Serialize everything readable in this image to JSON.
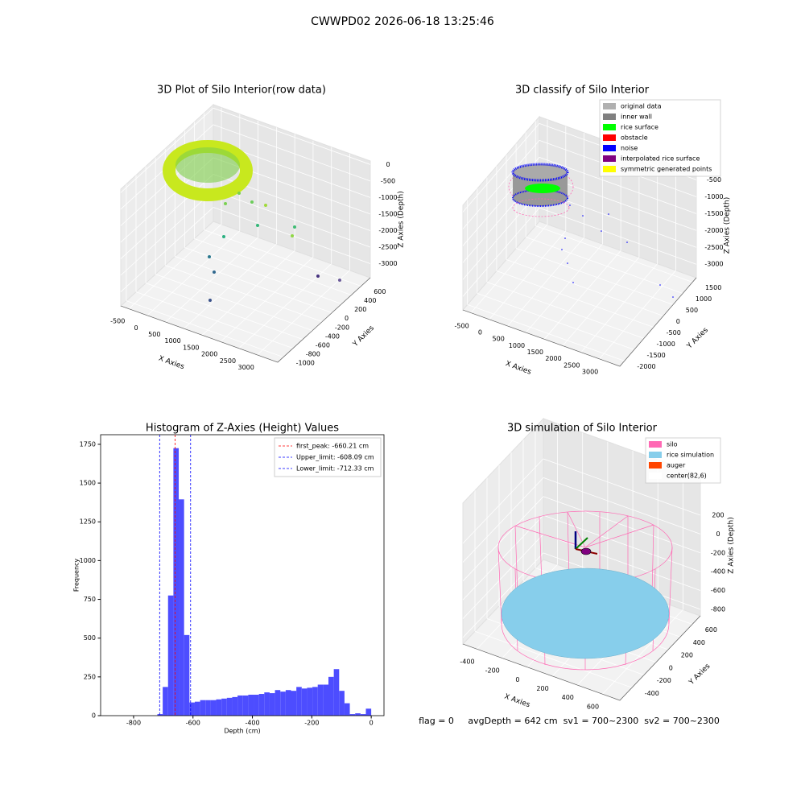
{
  "title": "CWWPD02 2026-06-18 13:25:46",
  "chart_data": [
    {
      "type": "scatter3d",
      "title": "3D Plot of Silo Interior(row data)",
      "xlabel": "X Axies",
      "ylabel": "Y Axies",
      "zlabel": "Z Axies (Depth)",
      "xlim": [
        -720,
        3560
      ],
      "ylim": [
        -1115,
        790
      ],
      "zlim": [
        -3425,
        105
      ],
      "xticks": [
        -500,
        0,
        500,
        1000,
        1500,
        2000,
        2500,
        3000
      ],
      "yticks": [
        -1000,
        -800,
        -600,
        -400,
        -200,
        0,
        200,
        400,
        600
      ],
      "zticks": [
        -3000,
        -2500,
        -2000,
        -1500,
        -1000,
        -500,
        0
      ]
    },
    {
      "type": "scatter3d",
      "title": "3D classify of Silo Interior",
      "xlabel": "X Axies",
      "ylabel": "Y Axies",
      "zlabel": "Z Axies (Depth)",
      "xlim": [
        -720,
        3560
      ],
      "ylim": [
        -2236,
        1697
      ],
      "zlim": [
        -3400,
        -300
      ],
      "xticks": [
        -500,
        0,
        500,
        1000,
        1500,
        2000,
        2500,
        3000
      ],
      "yticks": [
        -2000,
        -1500,
        -1000,
        -500,
        0,
        500,
        1000,
        1500
      ],
      "zticks": [
        -3000,
        -2500,
        -2000,
        -1500,
        -1000,
        -500
      ],
      "legend": "upper right",
      "series": [
        {
          "name": "original data",
          "color": "#b0b0b0"
        },
        {
          "name": "inner wall",
          "color": "#808080"
        },
        {
          "name": "rice surface",
          "color": "#00ff00"
        },
        {
          "name": "obstacle",
          "color": "#ff0000"
        },
        {
          "name": "noise",
          "color": "#0000ff"
        },
        {
          "name": "interpolated rice surface",
          "color": "#800080"
        },
        {
          "name": "symmetric generated points",
          "color": "#ffff00"
        }
      ]
    },
    {
      "type": "histogram",
      "title": "Histogram of Z-Axies (Height) Values",
      "xlabel": "Depth (cm)",
      "ylabel": "Frequency",
      "color": "#4d4dff",
      "bins": [
        -720,
        -702,
        -684,
        -666,
        -648,
        -630,
        -612,
        -594,
        -576,
        -558,
        -540,
        -522,
        -504,
        -486,
        -468,
        -450,
        -432,
        -414,
        -396,
        -378,
        -360,
        -342,
        -324,
        -306,
        -288,
        -270,
        -252,
        -234,
        -216,
        -198,
        -180,
        -162,
        -144,
        -126,
        -108,
        -90,
        -72,
        -54,
        -36,
        -18,
        0
      ],
      "counts": [
        10,
        185,
        775,
        1725,
        1395,
        520,
        85,
        90,
        100,
        100,
        100,
        105,
        110,
        115,
        120,
        130,
        130,
        135,
        135,
        140,
        150,
        145,
        165,
        155,
        165,
        160,
        185,
        175,
        180,
        185,
        200,
        200,
        250,
        300,
        160,
        80,
        10,
        15,
        10,
        45
      ],
      "xlim": [
        -911,
        43
      ],
      "ylim": [
        0,
        1812
      ],
      "xticks": [
        -800,
        -600,
        -400,
        -200,
        0
      ],
      "yticks": [
        0,
        250,
        500,
        750,
        1000,
        1250,
        1500,
        1750
      ],
      "legend": "upper right",
      "vlines": [
        {
          "value": -660.21,
          "label": "first_peak: -660.21 cm",
          "color": "#ff0000"
        },
        {
          "value": -608.09,
          "label": "Upper_limit: -608.09 cm",
          "color": "#0000ff"
        },
        {
          "value": -712.33,
          "label": "Lower_limit: -712.33 cm",
          "color": "#0000ff"
        }
      ]
    },
    {
      "type": "scatter3d",
      "title": "3D simulation of Silo Interior",
      "xlabel": "X Axies",
      "ylabel": "Y Axies",
      "zlabel": "Z Axies (Depth)",
      "xlim": [
        -512,
        738
      ],
      "ylim": [
        -600,
        733
      ],
      "zlim": [
        -869,
        628
      ],
      "xticks": [
        -400,
        -200,
        0,
        200,
        400,
        600
      ],
      "yticks": [
        -400,
        -200,
        0,
        200,
        400,
        600
      ],
      "zticks": [
        -800,
        -600,
        -400,
        -200,
        0,
        200
      ],
      "legend": "upper right",
      "series": [
        {
          "name": "silo",
          "color": "#ff69b4"
        },
        {
          "name": "rice simulation",
          "color": "#87ceeb"
        },
        {
          "name": "auger",
          "color": "#ff4500"
        },
        {
          "name": "center(82,6)",
          "color": "#ffffff"
        }
      ],
      "footer": "flag = 0     avgDepth = 642 cm  sv1 = 700~2300  sv2 = 700~2300"
    }
  ]
}
